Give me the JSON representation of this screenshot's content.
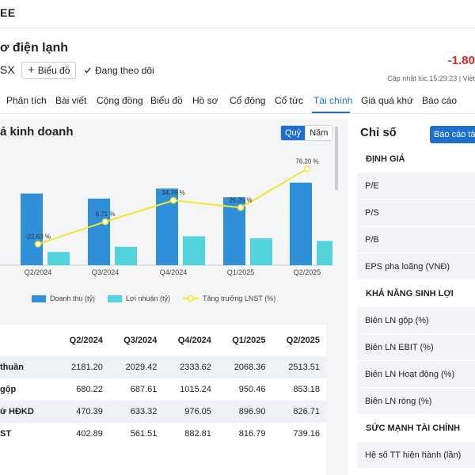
{
  "brand": "EE",
  "company_title": "ơ điện lạnh",
  "symbol": "SX",
  "chart_button": "Biểu đồ",
  "follow_text": "Đang theo dõi",
  "price_change": "-1.80",
  "update_text": "Cập nhật lúc  15:29:23 | Việt",
  "tabs": [
    "Phân tích",
    "Bài viết",
    "Cộng đồng",
    "Biểu đồ",
    "Hồ sơ",
    "Cổ đông",
    "Cổ tức",
    "Tài chính",
    "Giá quá khứ",
    "Báo cáo"
  ],
  "active_tab": "Tài chính",
  "section_title": "ả kinh doanh",
  "period": {
    "quarter": "Quý",
    "year": "Năm"
  },
  "chart_data": {
    "type": "bar",
    "categories": [
      "Q2/2024",
      "Q3/2024",
      "Q4/2024",
      "Q1/2025",
      "Q2/2025"
    ],
    "series": [
      {
        "name": "Doanh thu (tỷ)",
        "type": "bar",
        "values": [
          2181.2,
          2029.42,
          2333.62,
          2068.36,
          2513.51
        ],
        "color": "#2f8fd8"
      },
      {
        "name": "Lợi nhuận (tỷ)",
        "type": "bar",
        "values": [
          402.89,
          561.51,
          882.81,
          816.79,
          739.16
        ],
        "color": "#53d3dc"
      },
      {
        "name": "Tăng trưởng LNST (%)",
        "type": "line",
        "values": [
          -22.63,
          6.71,
          34.76,
          25.25,
          76.2
        ],
        "labels": [
          "-22.63 %",
          "6.71 %",
          "34.76 %",
          "25.25 %",
          "76.20 %"
        ],
        "color": "#f5e52a"
      }
    ]
  },
  "table": {
    "headers": [
      "",
      "Q2/2024",
      "Q3/2024",
      "Q4/2024",
      "Q1/2025",
      "Q2/2025"
    ],
    "rows": [
      {
        "label": "thuần",
        "values": [
          "2181.20",
          "2029.42",
          "2333.62",
          "2068.36",
          "2513.51"
        ]
      },
      {
        "label": "gộp",
        "values": [
          "680.22",
          "687.61",
          "1015.24",
          "950.46",
          "853.18"
        ]
      },
      {
        "label": "ừ HĐKD",
        "values": [
          "470.39",
          "633.32",
          "976.05",
          "896.90",
          "826.71"
        ]
      },
      {
        "label": "ST",
        "values": [
          "402.89",
          "561.51",
          "882.81",
          "816.79",
          "739.16"
        ]
      }
    ]
  },
  "indices": {
    "title": "Chỉ số",
    "report_button": "Báo cáo tà",
    "items": [
      {
        "kind": "group",
        "label": "ĐỊNH GIÁ"
      },
      {
        "kind": "item",
        "label": "P/E"
      },
      {
        "kind": "item",
        "label": "P/S"
      },
      {
        "kind": "item",
        "label": "P/B"
      },
      {
        "kind": "item",
        "label": "EPS pha loãng (VNĐ)"
      },
      {
        "kind": "group",
        "label": "KHẢ NĂNG SINH LỢI"
      },
      {
        "kind": "item",
        "label": "Biên LN gộp (%)"
      },
      {
        "kind": "item",
        "label": "Biên LN EBIT (%)"
      },
      {
        "kind": "item",
        "label": "Biên LN Hoạt động (%)"
      },
      {
        "kind": "item",
        "label": "Biên LN ròng (%)"
      },
      {
        "kind": "group",
        "label": "SỨC MẠNH TÀI CHÍNH"
      },
      {
        "kind": "item",
        "label": "Hệ số TT hiện hành (lần)"
      }
    ]
  }
}
